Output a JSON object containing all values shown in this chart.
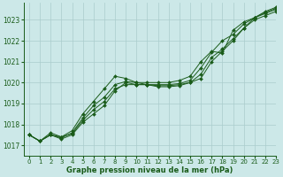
{
  "title": "Graphe pression niveau de la mer (hPa)",
  "bg_color": "#cce8e8",
  "grid_color": "#aacccc",
  "line_color": "#1a5c1a",
  "xlim": [
    -0.5,
    23
  ],
  "ylim": [
    1016.5,
    1023.8
  ],
  "yticks": [
    1017,
    1018,
    1019,
    1020,
    1021,
    1022,
    1023
  ],
  "xticks": [
    0,
    1,
    2,
    3,
    4,
    5,
    6,
    7,
    8,
    9,
    10,
    11,
    12,
    13,
    14,
    15,
    16,
    17,
    18,
    19,
    20,
    21,
    22,
    23
  ],
  "series": [
    [
      1017.5,
      1017.2,
      1017.5,
      1017.3,
      1017.5,
      1018.1,
      1018.5,
      1018.9,
      1019.6,
      1020.0,
      1019.9,
      1019.9,
      1019.8,
      1019.8,
      1019.85,
      1020.0,
      1020.2,
      1021.0,
      1021.5,
      1022.0,
      1022.6,
      1023.0,
      1023.2,
      1023.4
    ],
    [
      1017.5,
      1017.2,
      1017.5,
      1017.4,
      1017.55,
      1018.2,
      1018.7,
      1019.1,
      1019.7,
      1019.9,
      1019.9,
      1019.9,
      1019.85,
      1019.85,
      1019.9,
      1020.0,
      1020.4,
      1021.2,
      1021.6,
      1022.1,
      1022.6,
      1023.1,
      1023.3,
      1023.5
    ],
    [
      1017.5,
      1017.2,
      1017.5,
      1017.35,
      1017.6,
      1018.3,
      1018.9,
      1019.3,
      1019.9,
      1020.05,
      1020.0,
      1019.9,
      1019.9,
      1019.9,
      1019.95,
      1020.1,
      1020.7,
      1021.45,
      1022.0,
      1022.3,
      1022.8,
      1023.1,
      1023.35,
      1023.55
    ],
    [
      1017.5,
      1017.2,
      1017.6,
      1017.4,
      1017.7,
      1018.5,
      1019.1,
      1019.7,
      1020.3,
      1020.2,
      1020.0,
      1020.0,
      1020.0,
      1020.0,
      1020.1,
      1020.3,
      1021.0,
      1021.5,
      1021.4,
      1022.5,
      1022.9,
      1023.1,
      1023.4,
      1023.6
    ]
  ],
  "marker_indices": [
    0,
    1,
    2,
    3,
    4,
    5,
    6,
    7,
    8,
    9,
    10,
    14,
    15,
    16,
    17,
    18,
    19,
    20,
    21,
    22,
    23
  ]
}
